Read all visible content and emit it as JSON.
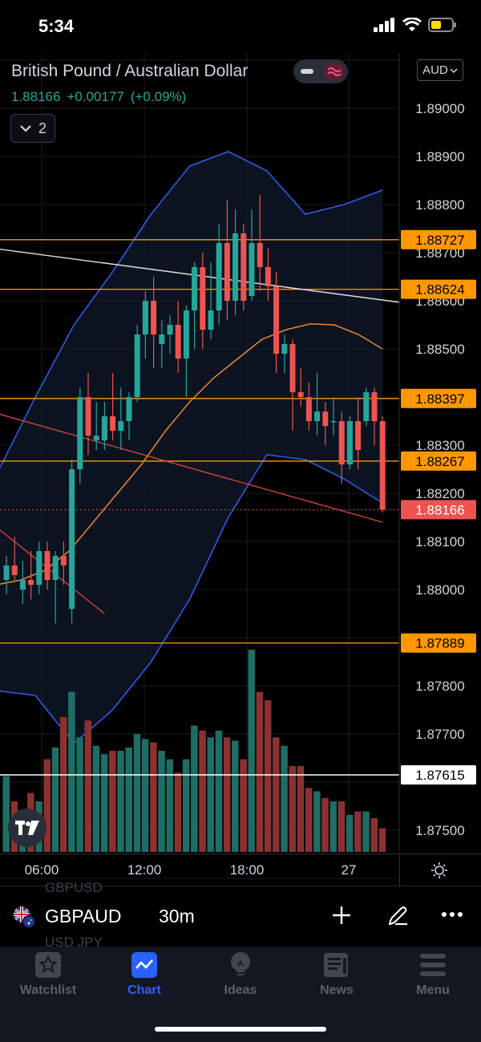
{
  "status": {
    "time": "5:34"
  },
  "legend": {
    "title": "British Pound / Australian Dollar",
    "price": "1.88166",
    "change": "+0.00177",
    "change_pct": "(+0.09%)",
    "indicator_count": "2"
  },
  "currency": "AUD",
  "chart_data": {
    "type": "candlestick",
    "title": "British Pound / Australian Dollar",
    "price_axis": {
      "ticks": [
        "1.89000",
        "1.88900",
        "1.88800",
        "1.88700",
        "1.88600",
        "1.88500",
        "1.88300",
        "1.88200",
        "1.88100",
        "1.88000",
        "1.87800",
        "1.87700",
        "1.87500"
      ],
      "ylim": [
        1.8742,
        1.8915
      ]
    },
    "time_axis": {
      "ticks": [
        "06:00",
        "12:00",
        "18:00",
        "27"
      ]
    },
    "horizontal_levels": [
      {
        "value": 1.88727,
        "label": "1.88727",
        "color": "#ff9800"
      },
      {
        "value": 1.88624,
        "label": "1.88624",
        "color": "#ff9800"
      },
      {
        "value": 1.88397,
        "label": "1.88397",
        "color": "#ff9800"
      },
      {
        "value": 1.88267,
        "label": "1.88267",
        "color": "#ff9800"
      },
      {
        "value": 1.87889,
        "label": "1.87889",
        "color": "#ff9800"
      },
      {
        "value": 1.87615,
        "label": "1.87615",
        "color": "#ffffff"
      }
    ],
    "last_price": {
      "value": 1.88166,
      "label": "1.88166",
      "color": "#ef5350"
    },
    "candles": [
      {
        "o": 1.8802,
        "h": 1.8807,
        "l": 1.8799,
        "c": 1.8805
      },
      {
        "o": 1.8805,
        "h": 1.8811,
        "l": 1.8802,
        "c": 1.8803
      },
      {
        "o": 1.88,
        "h": 1.8806,
        "l": 1.8797,
        "c": 1.8802
      },
      {
        "o": 1.8802,
        "h": 1.8808,
        "l": 1.8798,
        "c": 1.8801
      },
      {
        "o": 1.8801,
        "h": 1.881,
        "l": 1.8799,
        "c": 1.8808
      },
      {
        "o": 1.8808,
        "h": 1.881,
        "l": 1.88,
        "c": 1.8802
      },
      {
        "o": 1.8802,
        "h": 1.8808,
        "l": 1.8793,
        "c": 1.8807
      },
      {
        "o": 1.8807,
        "h": 1.881,
        "l": 1.8801,
        "c": 1.8805
      },
      {
        "o": 1.8796,
        "h": 1.8827,
        "l": 1.8793,
        "c": 1.8825
      },
      {
        "o": 1.8825,
        "h": 1.8842,
        "l": 1.8822,
        "c": 1.884
      },
      {
        "o": 1.884,
        "h": 1.8845,
        "l": 1.8828,
        "c": 1.8832
      },
      {
        "o": 1.8831,
        "h": 1.8839,
        "l": 1.8829,
        "c": 1.8832
      },
      {
        "o": 1.8831,
        "h": 1.8839,
        "l": 1.8829,
        "c": 1.8836
      },
      {
        "o": 1.8836,
        "h": 1.8845,
        "l": 1.8831,
        "c": 1.8833
      },
      {
        "o": 1.8833,
        "h": 1.8842,
        "l": 1.8829,
        "c": 1.8835
      },
      {
        "o": 1.8835,
        "h": 1.8841,
        "l": 1.8831,
        "c": 1.884
      },
      {
        "o": 1.884,
        "h": 1.8855,
        "l": 1.8839,
        "c": 1.8853
      },
      {
        "o": 1.8853,
        "h": 1.8862,
        "l": 1.8848,
        "c": 1.886
      },
      {
        "o": 1.886,
        "h": 1.8865,
        "l": 1.8846,
        "c": 1.8853
      },
      {
        "o": 1.8851,
        "h": 1.8856,
        "l": 1.8846,
        "c": 1.8853
      },
      {
        "o": 1.8853,
        "h": 1.8857,
        "l": 1.8849,
        "c": 1.8855
      },
      {
        "o": 1.8855,
        "h": 1.886,
        "l": 1.8845,
        "c": 1.8848
      },
      {
        "o": 1.8848,
        "h": 1.8859,
        "l": 1.884,
        "c": 1.8858
      },
      {
        "o": 1.8858,
        "h": 1.8868,
        "l": 1.885,
        "c": 1.8867
      },
      {
        "o": 1.8867,
        "h": 1.887,
        "l": 1.885,
        "c": 1.8854
      },
      {
        "o": 1.8854,
        "h": 1.8868,
        "l": 1.8852,
        "c": 1.8858
      },
      {
        "o": 1.8858,
        "h": 1.8876,
        "l": 1.8855,
        "c": 1.8872
      },
      {
        "o": 1.8872,
        "h": 1.8881,
        "l": 1.8856,
        "c": 1.886
      },
      {
        "o": 1.886,
        "h": 1.8879,
        "l": 1.8857,
        "c": 1.8874
      },
      {
        "o": 1.8874,
        "h": 1.8876,
        "l": 1.8858,
        "c": 1.886
      },
      {
        "o": 1.8861,
        "h": 1.8879,
        "l": 1.886,
        "c": 1.8872
      },
      {
        "o": 1.8872,
        "h": 1.8882,
        "l": 1.8862,
        "c": 1.8867
      },
      {
        "o": 1.8867,
        "h": 1.8871,
        "l": 1.886,
        "c": 1.8863
      },
      {
        "o": 1.8863,
        "h": 1.8866,
        "l": 1.8845,
        "c": 1.8849
      },
      {
        "o": 1.8849,
        "h": 1.8853,
        "l": 1.8845,
        "c": 1.8851
      },
      {
        "o": 1.8851,
        "h": 1.8852,
        "l": 1.8833,
        "c": 1.8841
      },
      {
        "o": 1.8841,
        "h": 1.8846,
        "l": 1.8838,
        "c": 1.884
      },
      {
        "o": 1.884,
        "h": 1.8843,
        "l": 1.8833,
        "c": 1.8835
      },
      {
        "o": 1.8835,
        "h": 1.8845,
        "l": 1.8832,
        "c": 1.8837
      },
      {
        "o": 1.8837,
        "h": 1.8839,
        "l": 1.883,
        "c": 1.8834
      },
      {
        "o": 1.8835,
        "h": 1.884,
        "l": 1.8832,
        "c": 1.8835
      },
      {
        "o": 1.8835,
        "h": 1.8837,
        "l": 1.8822,
        "c": 1.8826
      },
      {
        "o": 1.8826,
        "h": 1.8836,
        "l": 1.8825,
        "c": 1.8835
      },
      {
        "o": 1.8835,
        "h": 1.884,
        "l": 1.8825,
        "c": 1.8829
      },
      {
        "o": 1.8835,
        "h": 1.8842,
        "l": 1.8834,
        "c": 1.8841
      },
      {
        "o": 1.8841,
        "h": 1.8842,
        "l": 1.883,
        "c": 1.8835
      },
      {
        "o": 1.8835,
        "h": 1.8836,
        "l": 1.8816,
        "c": 1.88166
      }
    ],
    "volume": [
      0.45,
      0.3,
      0.25,
      0.35,
      0.3,
      0.55,
      0.62,
      0.8,
      0.95,
      0.68,
      0.78,
      0.63,
      0.58,
      0.6,
      0.6,
      0.62,
      0.7,
      0.67,
      0.65,
      0.6,
      0.55,
      0.47,
      0.55,
      0.75,
      0.72,
      0.68,
      0.72,
      0.68,
      0.66,
      0.55,
      1.2,
      0.95,
      0.9,
      0.68,
      0.63,
      0.51,
      0.51,
      0.38,
      0.36,
      0.32,
      0.3,
      0.3,
      0.22,
      0.24,
      0.24,
      0.2,
      0.14
    ],
    "ma": [
      1.8801,
      1.8802,
      1.8804,
      1.8808,
      1.8814,
      1.882,
      1.8826,
      1.8833,
      1.8839,
      1.8844,
      1.8848,
      1.8852,
      1.8854,
      1.88552,
      1.8855,
      1.8853,
      1.885
    ],
    "bb_upper": [
      1.8824,
      1.884,
      1.8855,
      1.8866,
      1.8878,
      1.8888,
      1.8891,
      1.8887,
      1.8878,
      1.888,
      1.8883
    ],
    "bb_lower": [
      1.8779,
      1.8778,
      1.8768,
      1.8775,
      1.8785,
      1.8798,
      1.8815,
      1.8828,
      1.8827,
      1.8823,
      1.8818
    ],
    "trend_lines": [
      {
        "name": "white",
        "color": "#e0e0e0",
        "from": [
          -2,
          1.8871
        ],
        "to": [
          60,
          1.8857
        ]
      },
      {
        "name": "red-long",
        "color": "#d0443b",
        "from": [
          -2,
          1.8837
        ],
        "to": [
          46,
          1.8814
        ]
      },
      {
        "name": "red-short",
        "color": "#d0443b",
        "from": [
          -2,
          1.8814
        ],
        "to": [
          12,
          1.8795
        ]
      }
    ]
  },
  "symbol_bar": {
    "ghost_above": "GBPUSD",
    "symbol": "GBPAUD",
    "interval": "30m",
    "ghost_below": "USD JPY"
  },
  "tabs": [
    {
      "label": "Watchlist",
      "icon": "star-icon",
      "active": false
    },
    {
      "label": "Chart",
      "icon": "chart-icon",
      "active": true
    },
    {
      "label": "Ideas",
      "icon": "lightbulb-icon",
      "active": false
    },
    {
      "label": "News",
      "icon": "news-icon",
      "active": false
    },
    {
      "label": "Menu",
      "icon": "menu-icon",
      "active": false
    }
  ],
  "colors": {
    "up": "#26a69a",
    "down": "#ef5350",
    "up_vol": "#1f6d65",
    "down_vol": "#8b3131",
    "bb": "#2f5bea",
    "ma": "#f0862c",
    "accent": "#2962ff"
  }
}
